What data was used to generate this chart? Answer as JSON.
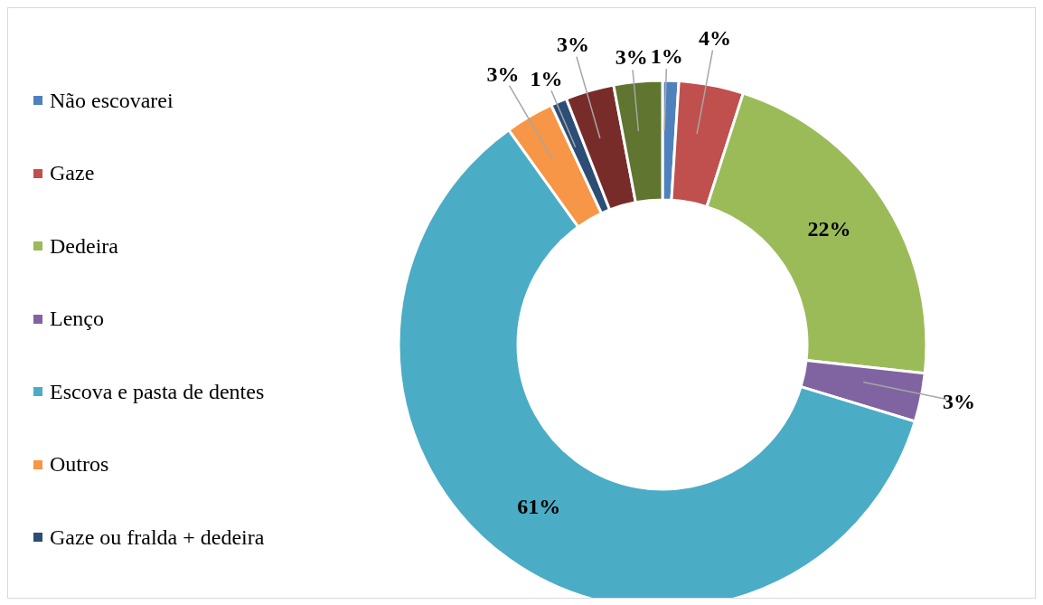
{
  "chart_data": {
    "type": "donut",
    "categories": [
      "Não escovarei",
      "Gaze",
      "Dedeira",
      "Lenço",
      "Escova e pasta de dentes",
      "Outros",
      "Gaze ou fralda + dedeira",
      null,
      null
    ],
    "values": [
      1,
      4,
      22,
      3,
      61,
      3,
      1,
      3,
      3
    ],
    "colors": [
      "#4f81bd",
      "#c0504d",
      "#9bbb59",
      "#8064a2",
      "#4bacc6",
      "#f79646",
      "#2c4d75",
      "#772c2a",
      "#5f7530"
    ],
    "value_labels": [
      "1%",
      "4%",
      "22%",
      "3%",
      "61%",
      "3%",
      "1%",
      "3%",
      "3%"
    ],
    "legend": "left"
  }
}
